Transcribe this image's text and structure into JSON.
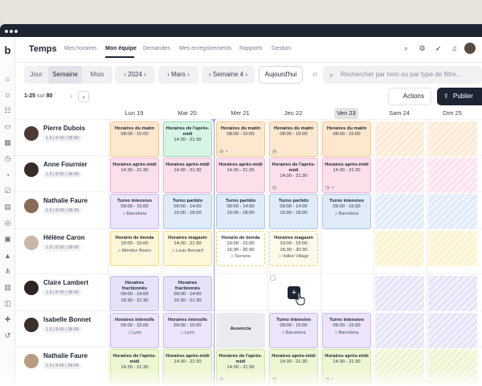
{
  "app": {
    "title": "Temps"
  },
  "nav": {
    "items": [
      "Mes horaires",
      "Mon équipe",
      "Demandes",
      "Mes enregistrements",
      "Rapports",
      "Gestion"
    ],
    "active": "Mon équipe"
  },
  "toolbar": {
    "view_options": [
      "Jour",
      "Semaine",
      "Mois"
    ],
    "active_view": "Semaine",
    "year": "2024",
    "month": "Mars",
    "week": "Semaine 4",
    "today_label": "Aujourd'hui",
    "search_placeholder": "Rechercher par nom ou par type de filtre..."
  },
  "pagination": {
    "range": "1-25",
    "of_label": "sur",
    "total": "80"
  },
  "buttons": {
    "actions": "Actions",
    "publish": "Publier"
  },
  "days": [
    {
      "label": "Lun 19",
      "today": false
    },
    {
      "label": "Mar 20",
      "today": false
    },
    {
      "label": "Mer 21",
      "today": false
    },
    {
      "label": "Jeu 22",
      "today": false
    },
    {
      "label": "Ven 23",
      "today": true
    },
    {
      "label": "Sam 24",
      "today": false
    },
    {
      "label": "Dim 25",
      "today": false
    }
  ],
  "colors": {
    "primary": "#1f2433",
    "now_line": "#9db3de"
  },
  "employees": [
    {
      "name": "Pierre Dubois",
      "meta": "1.5 | 8:00 | 38:00",
      "avatar_color": "#4a3b34",
      "shifts": [
        {
          "title": "Horaires du matin",
          "time1": "08:00 - 15:00",
          "time2": "",
          "loc": "",
          "color": "orange",
          "icons": ""
        },
        {
          "title": "Horaires de l'après-midi",
          "time1": "14:30 - 21:30",
          "time2": "",
          "loc": "",
          "color": "green",
          "icons": ""
        },
        {
          "title": "Horaires du matin",
          "time1": "08:00 - 15:00",
          "time2": "",
          "loc": "",
          "color": "orange",
          "icons": "◷ ◔"
        },
        {
          "title": "Horaires du matin",
          "time1": "08:00 - 15:00",
          "time2": "",
          "loc": "",
          "color": "orange",
          "icons": "◷"
        },
        {
          "title": "Horaires du matin",
          "time1": "08:00 - 15:00",
          "time2": "",
          "loc": "",
          "color": "orange",
          "icons": ""
        }
      ],
      "weekend": "orange"
    },
    {
      "name": "Anne Fournier",
      "meta": "1.5 | 8:00 | 38:00",
      "avatar_color": "#3a2a27",
      "shifts": [
        {
          "title": "Horaires après-midi",
          "time1": "14:30 - 21:30",
          "time2": "",
          "loc": "",
          "color": "pink",
          "icons": ""
        },
        {
          "title": "Horaires après-midi",
          "time1": "14:30 - 21:30",
          "time2": "",
          "loc": "",
          "color": "pink",
          "icons": ""
        },
        {
          "title": "Horaires après-midi",
          "time1": "14:30 - 21:30",
          "time2": "",
          "loc": "",
          "color": "pink",
          "icons": ""
        },
        {
          "title": "Horaires de l'après-midi",
          "time1": "14:30 - 21:30",
          "time2": "",
          "loc": "",
          "color": "pink",
          "icons": "◷"
        },
        {
          "title": "Horaires après-midi",
          "time1": "14:30 - 21:30",
          "time2": "",
          "loc": "",
          "color": "pink",
          "icons": "◷ ◔"
        }
      ],
      "weekend": "pink"
    },
    {
      "name": "Nathalie Faure",
      "meta": "1.5 | 8:00 | 38:00",
      "avatar_color": "#8a6b55",
      "shifts": [
        {
          "title": "Turno intensivo",
          "time1": "09:00 - 15:00",
          "time2": "",
          "loc": "Barcelona",
          "color": "purple",
          "icons": ""
        },
        {
          "title": "Turno partido",
          "time1": "09:00 - 14:00",
          "time2": "15:00 - 18:00",
          "loc": "",
          "color": "blue",
          "icons": ""
        },
        {
          "title": "Turno partido",
          "time1": "09:00 - 14:00",
          "time2": "15:00 - 18:00",
          "loc": "",
          "color": "blue",
          "icons": ""
        },
        {
          "title": "Turno partido",
          "time1": "09:00 - 14:00",
          "time2": "15:00 - 18:00",
          "loc": "",
          "color": "blue",
          "icons": ""
        },
        {
          "title": "Turno intensivo",
          "time1": "09:00 - 15:00",
          "time2": "",
          "loc": "Barcelona",
          "color": "blue",
          "icons": ""
        }
      ],
      "weekend": "blue"
    },
    {
      "name": "Hélène Caron",
      "meta": "1.5 | 8:00 | 38:00",
      "avatar_color": "#c9b8a6",
      "shifts": [
        {
          "title": "Horario de tienda",
          "time1": "10:00 - 15:00",
          "time2": "",
          "loc": "Méndez Álvaro",
          "color": "yellow",
          "icons": ""
        },
        {
          "title": "Horaires magasin",
          "time1": "14:30 - 21:30",
          "time2": "",
          "loc": "Louis Bernard",
          "color": "yellow",
          "icons": ""
        },
        {
          "title": "Horario de tienda",
          "time1": "10:00 - 15:00",
          "time2": "16:30 - 20:30",
          "loc": "Serrano",
          "color": "white-yellow",
          "icons": ""
        },
        {
          "title": "Horaires magasin",
          "time1": "10:00 - 15:00",
          "time2": "16:30 - 20:30",
          "loc": "Vallée Village",
          "color": "yellow-dash",
          "icons": ""
        },
        null
      ],
      "weekend": "yellow"
    },
    {
      "name": "Claire Lambert",
      "meta": "1.5 | 8:00 | 38:00",
      "avatar_color": "#2e2522",
      "shifts": [
        {
          "title": "Horaires fractionnés",
          "time1": "09:00 - 14:00",
          "time2": "16:30 - 21:30",
          "loc": "",
          "color": "lav",
          "icons": ""
        },
        {
          "title": "Horaires fractionnés",
          "time1": "09:00 - 14:00",
          "time2": "16:30 - 21:30",
          "loc": "",
          "color": "lav",
          "icons": ""
        },
        null,
        null,
        null
      ],
      "weekend": "lav"
    },
    {
      "name": "Isabelle Bonnet",
      "meta": "1.5 | 8:00 | 38:00",
      "avatar_color": "#3d2f2a",
      "shifts": [
        {
          "title": "Horaires intensifs",
          "time1": "09:00 - 15:00",
          "time2": "",
          "loc": "Lyon",
          "color": "purple",
          "icons": ""
        },
        {
          "title": "Horaires intensifs",
          "time1": "09:00 - 15:00",
          "time2": "",
          "loc": "Lyon",
          "color": "purple",
          "icons": ""
        },
        {
          "title": "Ausencia",
          "time1": "",
          "time2": "",
          "loc": "",
          "color": "gray",
          "icons": ""
        },
        {
          "title": "Turno intensivo",
          "time1": "09:00 - 15:00",
          "time2": "",
          "loc": "Barcelona",
          "color": "purple",
          "icons": ""
        },
        {
          "title": "Turno intensivo",
          "time1": "09:00 - 15:00",
          "time2": "",
          "loc": "Barcelona",
          "color": "purple",
          "icons": ""
        }
      ],
      "weekend": "lav"
    },
    {
      "name": "Nathalie Faure",
      "meta": "1.5 | 8:00 | 38:00",
      "avatar_color": "#b89c80",
      "shifts": [
        {
          "title": "Horaires de l'après-midi",
          "time1": "14:30 - 21:30",
          "time2": "",
          "loc": "",
          "color": "lime",
          "icons": ""
        },
        {
          "title": "Horaires après-midi",
          "time1": "14:30 - 21:30",
          "time2": "",
          "loc": "",
          "color": "lime",
          "icons": ""
        },
        {
          "title": "Horaires de l'après-midi",
          "time1": "14:30 - 21:30",
          "time2": "",
          "loc": "",
          "color": "lime",
          "icons": "◷"
        },
        {
          "title": "Horaires après-midi",
          "time1": "14:30 - 21:30",
          "time2": "",
          "loc": "",
          "color": "lime",
          "icons": "◷"
        },
        {
          "title": "Horaires après-midi",
          "time1": "14:30 - 21:30",
          "time2": "",
          "loc": "",
          "color": "lime",
          "icons": "◷ ◔"
        }
      ],
      "weekend": "lime"
    }
  ]
}
